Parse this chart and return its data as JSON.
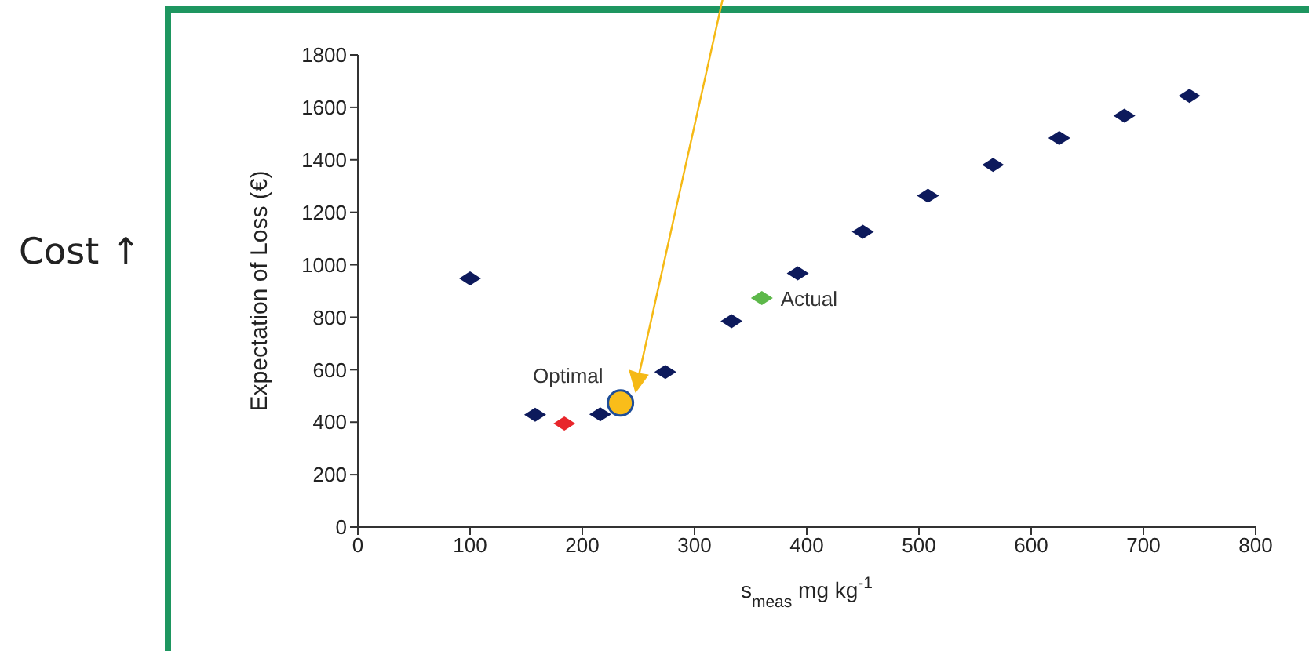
{
  "chart_data": {
    "type": "scatter",
    "xlabel": "s$_{meas}$ mg kg$^{-1}$",
    "ylabel": "Expectation of Loss  (€)",
    "annotations": [
      "Cost ↑"
    ],
    "xlim": [
      0,
      800
    ],
    "xticks": [
      0,
      100,
      200,
      300,
      400,
      500,
      600,
      700,
      800
    ],
    "ylim": [
      0,
      1800
    ],
    "yticks": [
      0,
      200,
      400,
      600,
      800,
      1000,
      1200,
      1400,
      1600,
      1800
    ],
    "grid": false,
    "legend": false,
    "series": [
      {
        "color": "#0d1a5c",
        "marker": "diamond",
        "x": [
          100,
          158,
          216,
          274,
          333,
          392,
          450,
          508,
          566,
          625,
          683,
          741
        ],
        "values": [
          948,
          428,
          430,
          591,
          785,
          967,
          1126,
          1263,
          1381,
          1483,
          1568,
          1644
        ]
      },
      {
        "color": "#e8262b",
        "marker": "diamond",
        "x": [
          184
        ],
        "values": [
          395
        ]
      },
      {
        "name": "Actual",
        "color": "#5db84a",
        "marker": "diamond",
        "x": [
          360
        ],
        "values": [
          873
        ]
      },
      {
        "name": "Optimal",
        "color": "#f9bd1a",
        "marker": "circle",
        "x": [
          234
        ],
        "values": [
          473
        ]
      }
    ]
  }
}
